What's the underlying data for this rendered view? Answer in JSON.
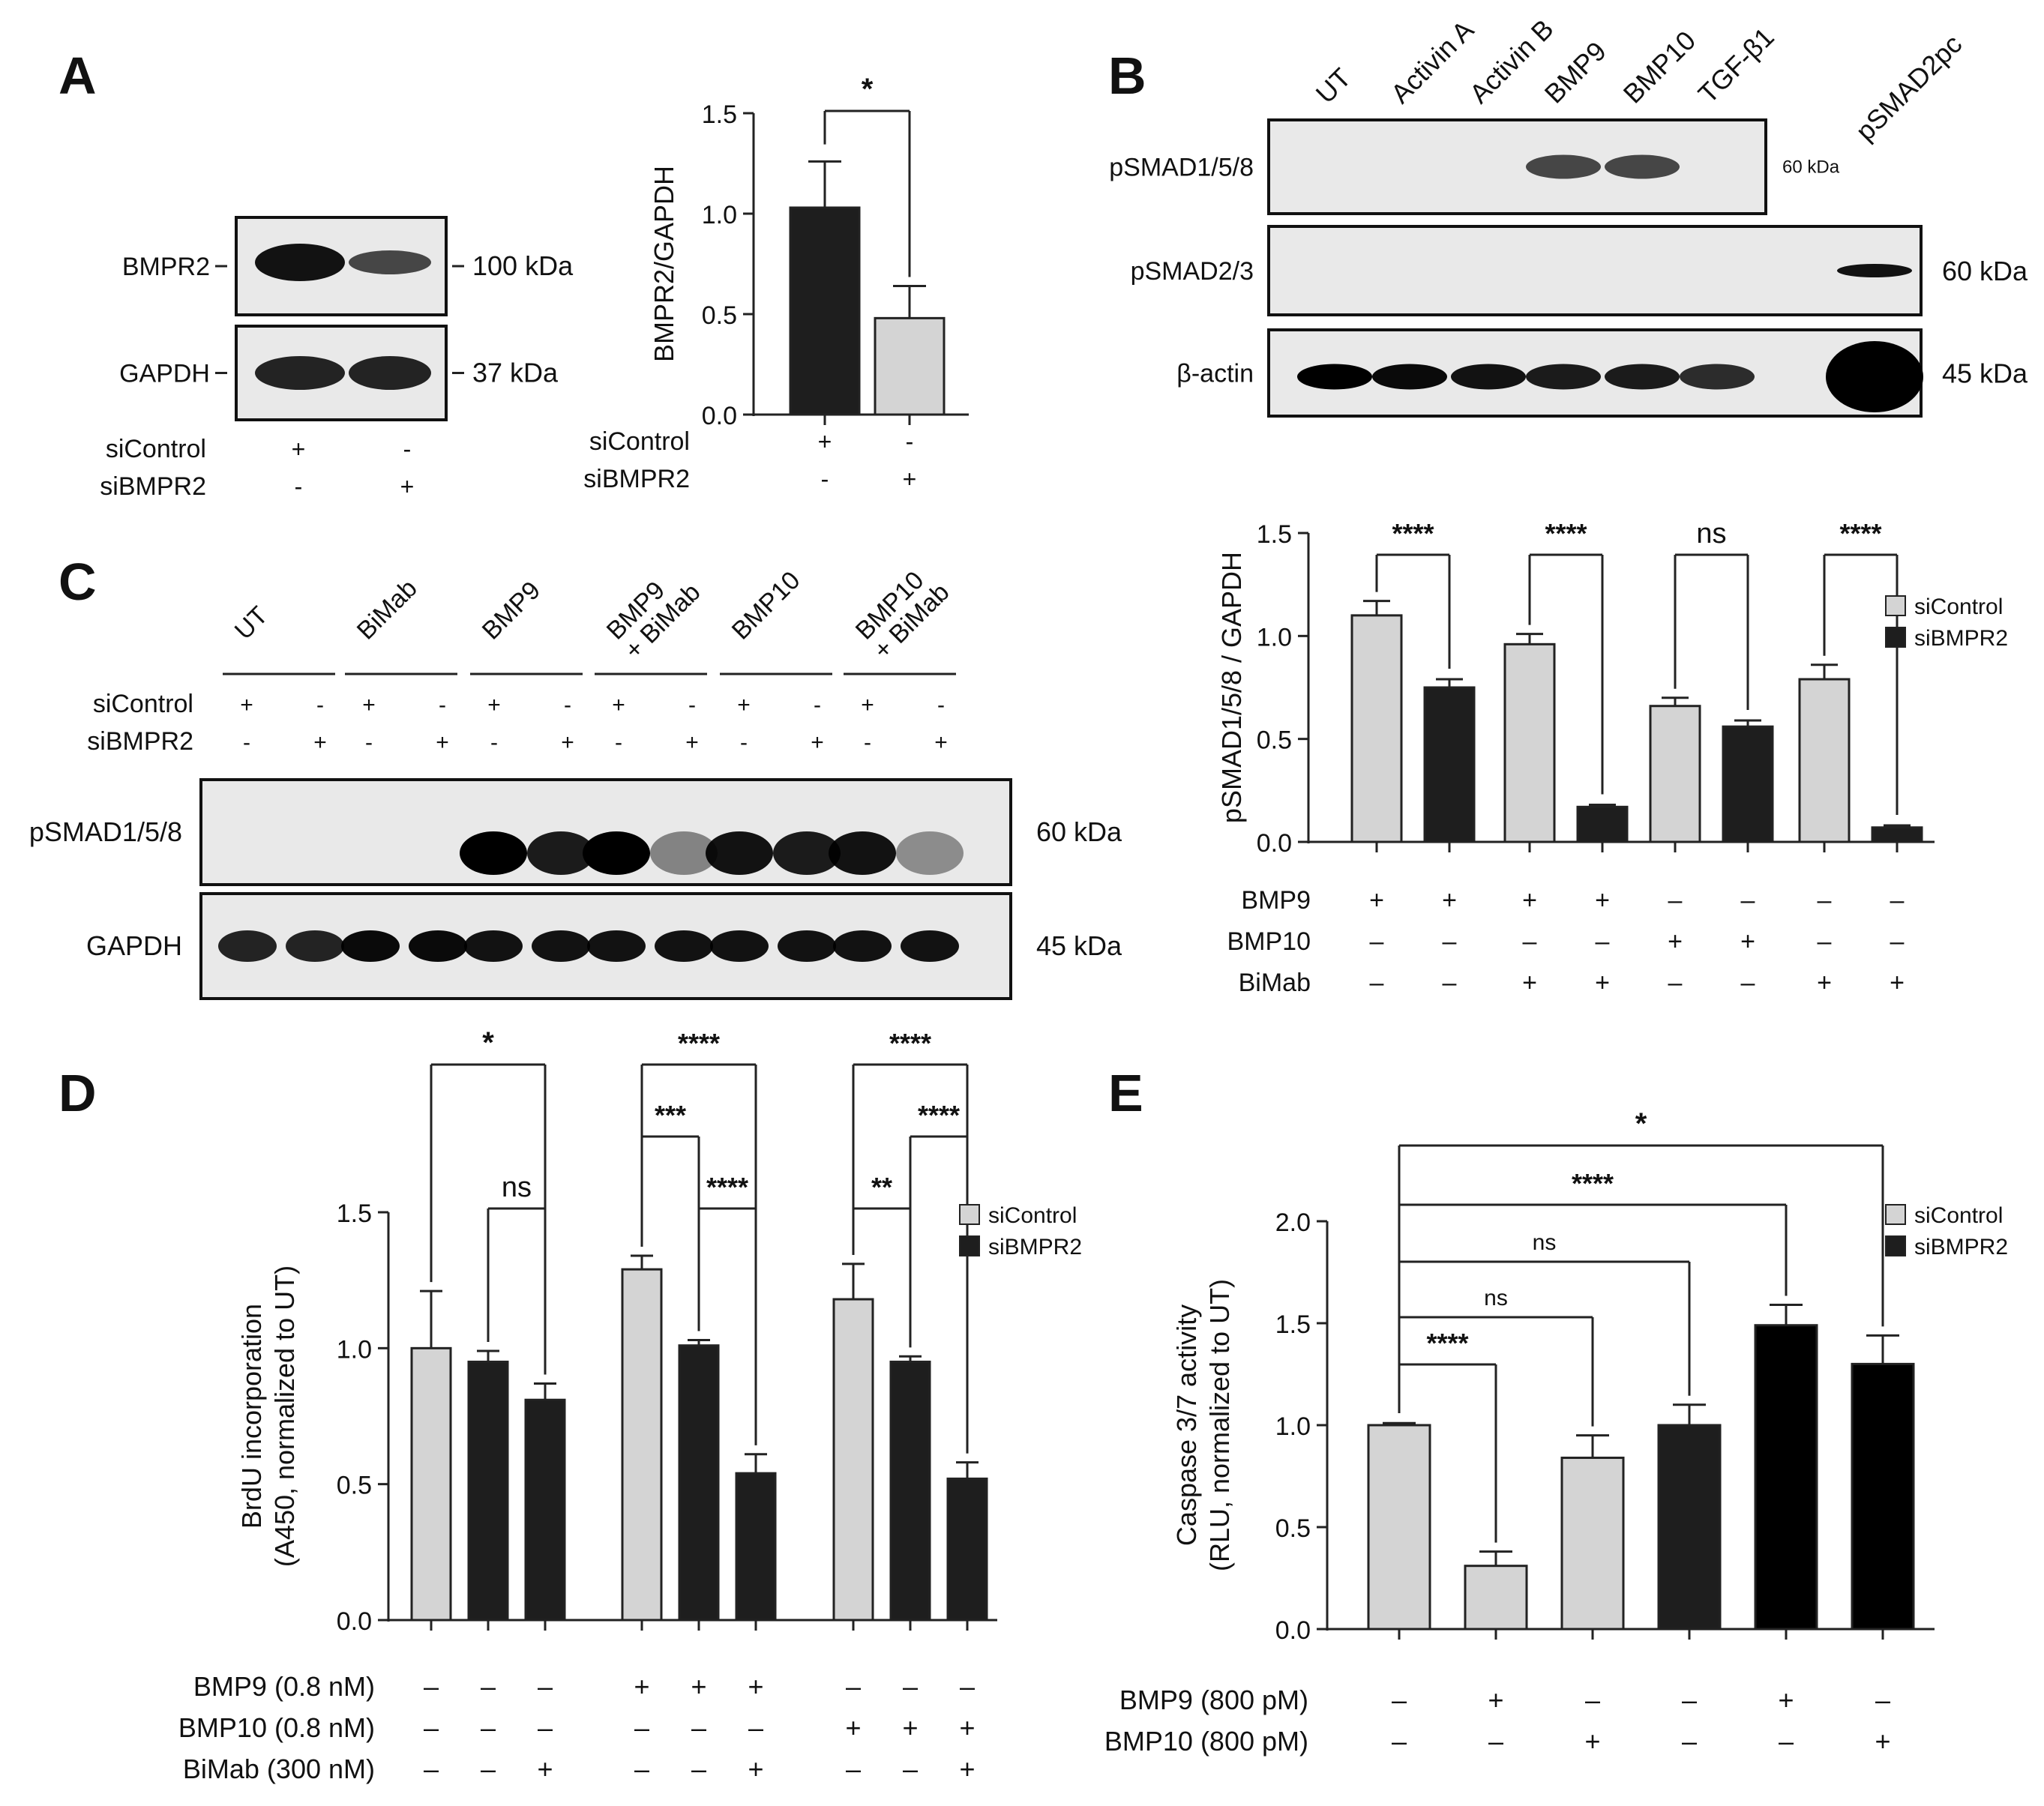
{
  "panel_letters": [
    "A",
    "B",
    "C",
    "D",
    "E"
  ],
  "colors": {
    "light_bar": "#d4d4d4",
    "dark_bar": "#1e1e1e",
    "black_bar": "#000000",
    "axis": "#333333",
    "blot_bg": "#e9e9e9"
  },
  "panelA": {
    "blot": {
      "rows": [
        {
          "label": "BMPR2",
          "kda": "100 kDa",
          "band_intensity": [
            0.9,
            0.6
          ]
        },
        {
          "label": "GAPDH",
          "kda": "37 kDa",
          "band_intensity": [
            0.8,
            0.8
          ]
        }
      ],
      "conditions": [
        {
          "label": "siControl",
          "signs": [
            "+",
            "-"
          ]
        },
        {
          "label": "siBMPR2",
          "signs": [
            "-",
            "+"
          ]
        }
      ]
    },
    "significance": "*"
  },
  "panelB": {
    "blot": {
      "lanes": [
        "UT",
        "Activin A",
        "Activin B",
        "BMP9",
        "BMP10",
        "TGF-β1",
        "",
        "pSMAD2pc"
      ],
      "rows": [
        {
          "label": "pSMAD1/5/8",
          "kda": "60 kDa",
          "bands": [
            0,
            0,
            0,
            0.6,
            0.6,
            0,
            0,
            0
          ]
        },
        {
          "label": "pSMAD2/3",
          "kda": "60 kDa",
          "bands": [
            0,
            0,
            0,
            0,
            0,
            0,
            0,
            0.9
          ]
        },
        {
          "label": "β-actin",
          "kda": "45 kDa",
          "bands": [
            1,
            0.95,
            0.9,
            0.85,
            0.85,
            0.75,
            0,
            1
          ]
        }
      ]
    },
    "legend": [
      "siControl",
      "siBMPR2"
    ],
    "significance": [
      "****",
      "****",
      "ns",
      "****"
    ],
    "conditions": [
      {
        "label": "BMP9",
        "signs": [
          "+",
          "+",
          "+",
          "+",
          "–",
          "–",
          "–",
          "–"
        ]
      },
      {
        "label": "BMP10",
        "signs": [
          "–",
          "–",
          "–",
          "–",
          "+",
          "+",
          "–",
          "–"
        ]
      },
      {
        "label": "BiMab",
        "signs": [
          "–",
          "–",
          "+",
          "+",
          "–",
          "–",
          "+",
          "+"
        ]
      }
    ]
  },
  "panelC": {
    "groups": [
      "UT",
      "BiMab",
      "BMP9",
      "BMP9\n+ BiMab",
      "BMP10",
      "BMP10\n+ BiMab"
    ],
    "conditions": [
      {
        "label": "siControl",
        "signs": [
          "+",
          "-",
          "+",
          "-",
          "+",
          "-",
          "+",
          "-",
          "+",
          "-",
          "+",
          "-"
        ]
      },
      {
        "label": "siBMPR2",
        "signs": [
          "-",
          "+",
          "-",
          "+",
          "-",
          "+",
          "-",
          "+",
          "-",
          "+",
          "-",
          "+"
        ]
      }
    ],
    "rows": [
      {
        "label": "pSMAD1/5/8",
        "kda": "60 kDa",
        "bands": [
          0,
          0,
          0,
          0,
          1,
          0.85,
          1,
          0.25,
          0.9,
          0.85,
          0.9,
          0.2
        ]
      },
      {
        "label": "GAPDH",
        "kda": "45 kDa",
        "bands": [
          0.8,
          0.8,
          0.95,
          0.95,
          0.9,
          0.9,
          0.9,
          0.9,
          0.9,
          0.9,
          0.9,
          0.9
        ]
      }
    ]
  },
  "panelD": {
    "legend": [
      "siControl",
      "siBMPR2"
    ],
    "significance": [
      "*",
      "ns",
      "****",
      "***",
      "****",
      "****",
      "**",
      "****"
    ],
    "conditions": [
      {
        "label": "BMP9 (0.8 nM)",
        "signs": [
          "–",
          "–",
          "–",
          "+",
          "+",
          "+",
          "–",
          "–",
          "–"
        ]
      },
      {
        "label": "BMP10 (0.8 nM)",
        "signs": [
          "–",
          "–",
          "–",
          "–",
          "–",
          "–",
          "+",
          "+",
          "+"
        ]
      },
      {
        "label": "BiMab (300 nM)",
        "signs": [
          "–",
          "–",
          "+",
          "–",
          "–",
          "+",
          "–",
          "–",
          "+"
        ]
      }
    ]
  },
  "panelE": {
    "legend": [
      "siControl",
      "siBMPR2"
    ],
    "significance": [
      "*",
      "****",
      "ns",
      "ns",
      "****"
    ],
    "conditions": [
      {
        "label": "BMP9 (800 pM)",
        "signs": [
          "–",
          "+",
          "–",
          "–",
          "+",
          "–"
        ]
      },
      {
        "label": "BMP10 (800 pM)",
        "signs": [
          "–",
          "–",
          "+",
          "–",
          "–",
          "+"
        ]
      }
    ]
  },
  "chart_data": [
    {
      "panel": "A",
      "type": "bar",
      "categories": [
        "siControl",
        "siBMPR2"
      ],
      "values": [
        1.03,
        0.48
      ],
      "errors": [
        0.23,
        0.16
      ],
      "colors": [
        "#1e1e1e",
        "#d4d4d4"
      ],
      "ylabel": "BMPR2/GAPDH",
      "ylim": [
        0,
        1.5
      ],
      "yticks": [
        "0.0",
        "0.5",
        "1.0",
        "1.5"
      ]
    },
    {
      "panel": "B",
      "type": "bar",
      "series_per_bar": [
        "siControl",
        "siBMPR2",
        "siControl",
        "siBMPR2",
        "siControl",
        "siBMPR2",
        "siControl",
        "siBMPR2"
      ],
      "values": [
        1.1,
        0.75,
        0.96,
        0.17,
        0.66,
        0.56,
        0.79,
        0.07
      ],
      "errors": [
        0.07,
        0.04,
        0.05,
        0.01,
        0.04,
        0.03,
        0.07,
        0.01
      ],
      "ylabel": "pSMAD1/5/8 / GAPDH",
      "ylim": [
        0,
        1.5
      ],
      "yticks": [
        "0.0",
        "0.5",
        "1.0",
        "1.5"
      ]
    },
    {
      "panel": "D",
      "type": "bar",
      "series_per_bar": [
        "siControl",
        "siBMPR2",
        "siBMPR2",
        "siControl",
        "siBMPR2",
        "siBMPR2",
        "siControl",
        "siBMPR2",
        "siBMPR2"
      ],
      "values": [
        1.0,
        0.95,
        0.81,
        1.29,
        1.01,
        0.54,
        1.18,
        0.95,
        0.52
      ],
      "errors": [
        0.21,
        0.04,
        0.06,
        0.05,
        0.02,
        0.07,
        0.13,
        0.02,
        0.06
      ],
      "ylabel": "BrdU incorporation\n(A450, normalized to UT)",
      "ylim": [
        0,
        1.5
      ],
      "yticks": [
        "0.0",
        "0.5",
        "1.0",
        "1.5"
      ]
    },
    {
      "panel": "E",
      "type": "bar",
      "series_per_bar": [
        "siControl",
        "siControl",
        "siControl",
        "siBMPR2",
        "siBMPR2",
        "siBMPR2"
      ],
      "values": [
        1.0,
        0.31,
        0.84,
        1.0,
        1.49,
        1.3
      ],
      "errors": [
        0.01,
        0.07,
        0.11,
        0.1,
        0.1,
        0.14
      ],
      "ylabel": "Caspase 3/7 activity\n(RLU, normalized to UT)",
      "ylim": [
        0,
        2.0
      ],
      "yticks": [
        "0.0",
        "0.5",
        "1.0",
        "1.5",
        "2.0"
      ]
    }
  ]
}
